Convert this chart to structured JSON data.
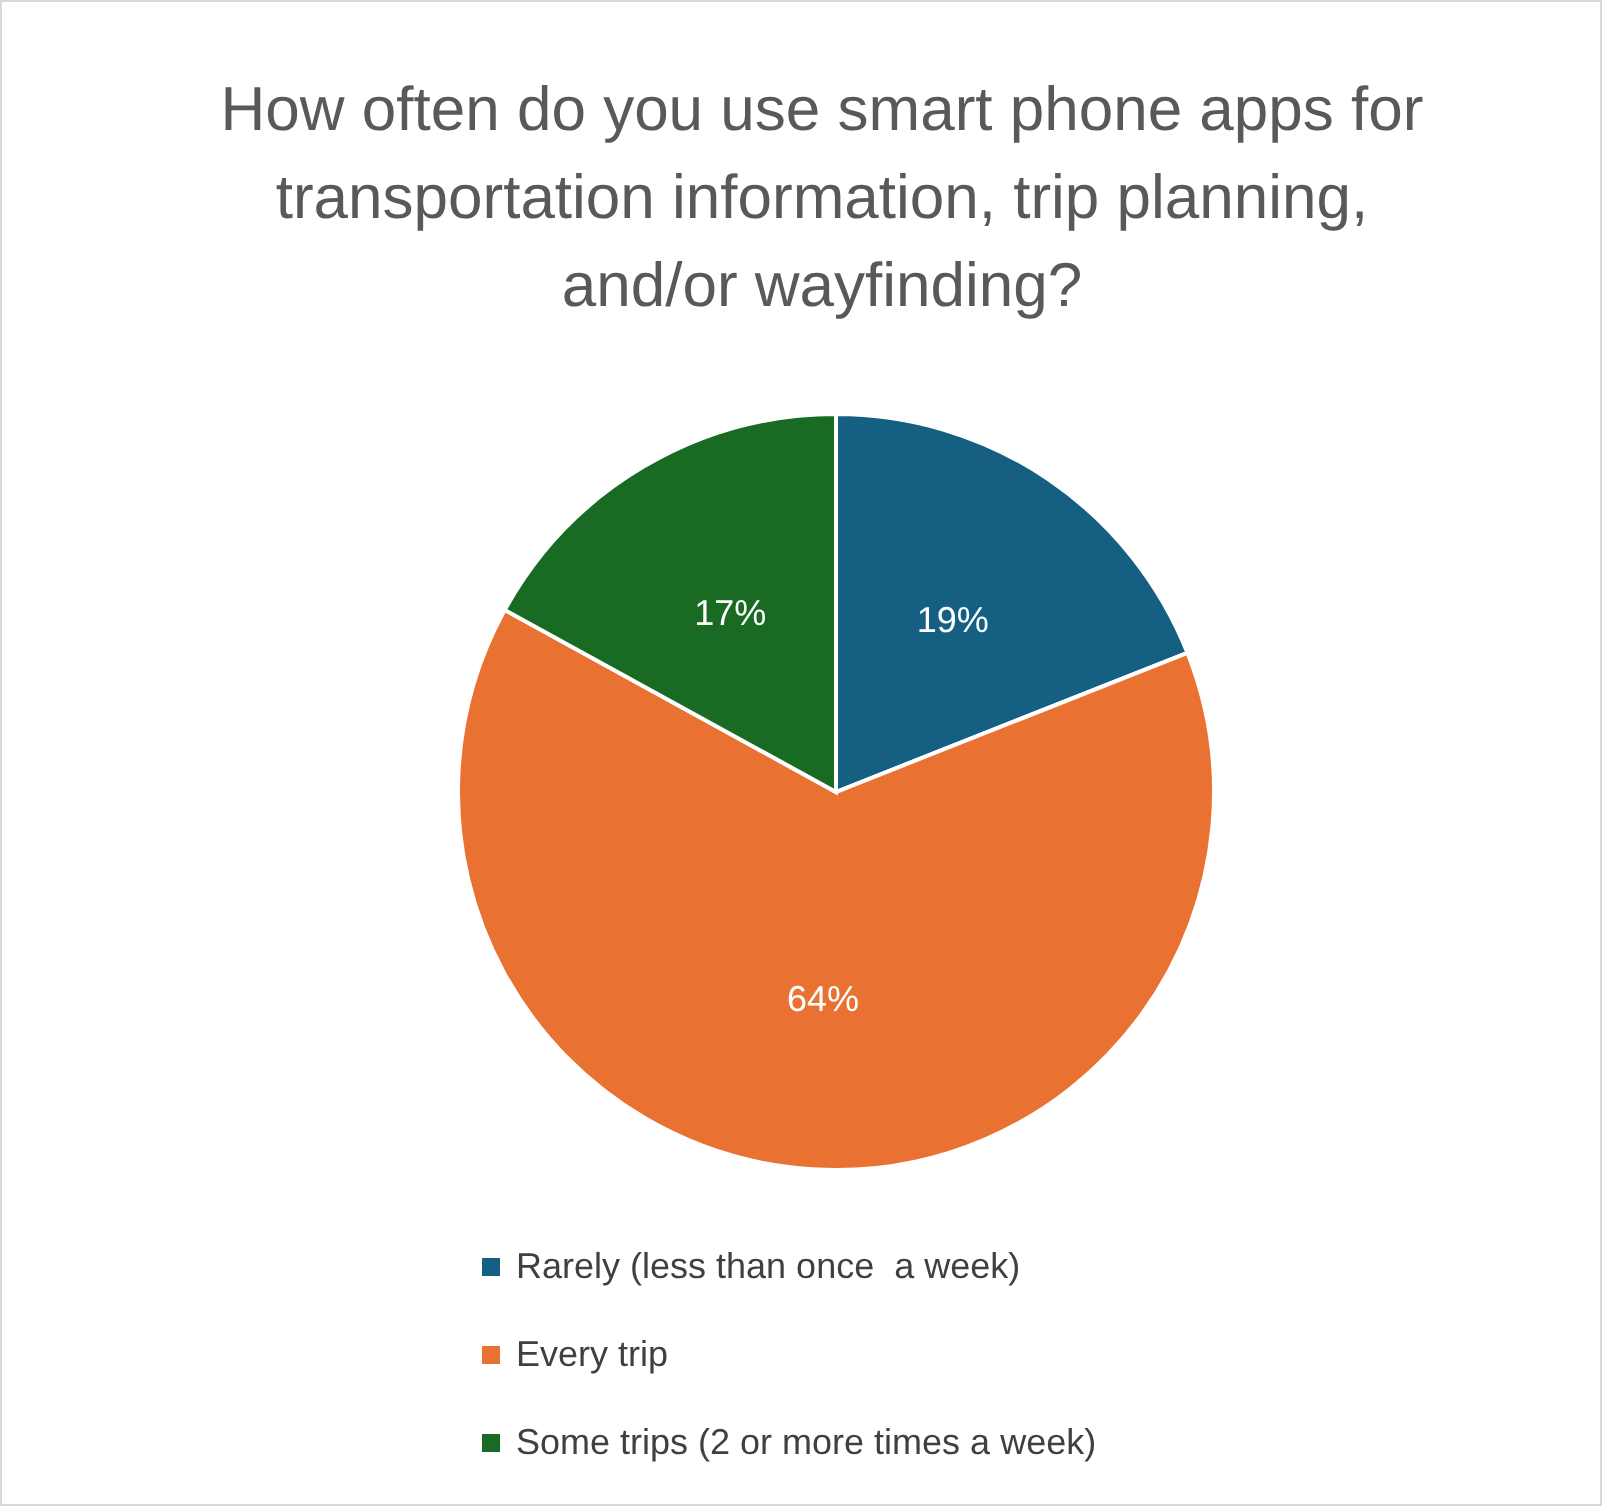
{
  "chart_data": {
    "type": "pie",
    "title": "How often do you use smart phone apps for transportation information, trip planning, and/or wayfinding?",
    "categories": [
      "Rarely (less than once  a week)",
      "Every trip",
      "Some trips (2 or more times a week)"
    ],
    "values": [
      19,
      64,
      17
    ],
    "colors": [
      "#156082",
      "#e97132",
      "#196b24"
    ],
    "value_labels": [
      "19%",
      "64%",
      "17%"
    ],
    "legend": "bottom"
  }
}
